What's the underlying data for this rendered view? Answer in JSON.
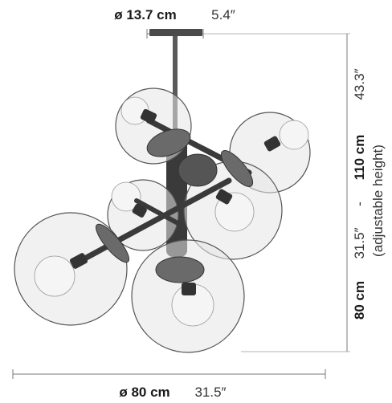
{
  "top_dimension": {
    "metric": "ø 13.7 cm",
    "imperial": "5.4″"
  },
  "bottom_dimension": {
    "metric": "ø 80 cm",
    "imperial": "31.5″"
  },
  "right_dimension": {
    "min_metric": "80 cm",
    "min_imperial": "31.5″",
    "separator": "-",
    "max_metric": "110 cm",
    "max_imperial": "43.3″",
    "note": "(adjustable height)"
  },
  "colors": {
    "glass_fill": "#e6e6e6",
    "glass_stroke": "#555555",
    "metal": "#3c3c3c",
    "dimension_line": "#7a7a7a"
  }
}
